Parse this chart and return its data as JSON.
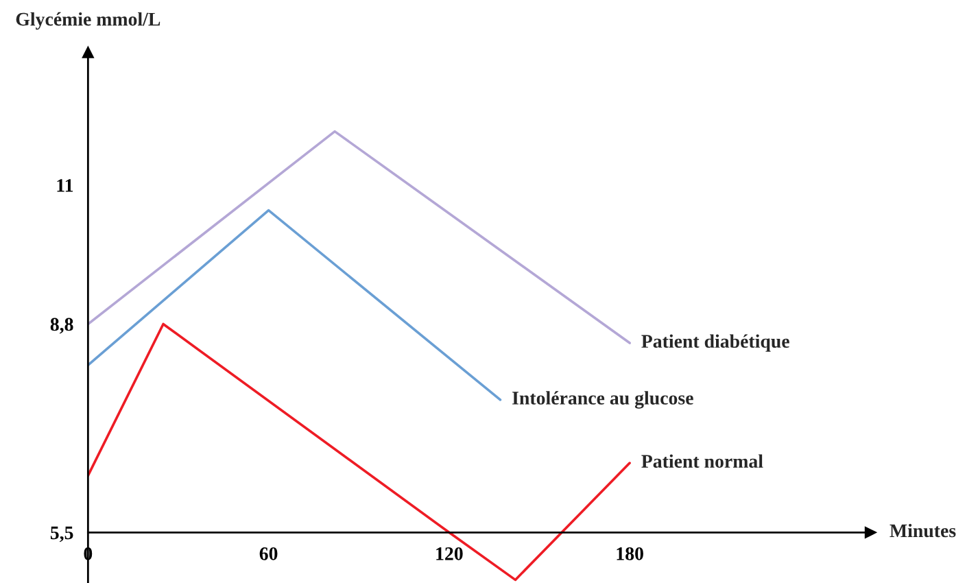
{
  "chart_data": {
    "type": "line",
    "xlabel": "Minutes",
    "ylabel": "Glycémie mmol/L",
    "series": [
      {
        "name": "Patient diabétique",
        "color": "#b4a7d6",
        "x": [
          0,
          82,
          180
        ],
        "values": [
          8.8,
          11.85,
          8.5
        ]
      },
      {
        "name": "Intolérance au glucose",
        "color": "#6a9fd4",
        "x": [
          0,
          60,
          137
        ],
        "values": [
          8.15,
          10.6,
          7.6
        ]
      },
      {
        "name": "Patient normal",
        "color": "#ee1c25",
        "x": [
          0,
          25,
          120,
          142,
          180
        ],
        "values": [
          6.4,
          8.8,
          5.5,
          4.75,
          6.6
        ]
      }
    ],
    "xlim": [
      0,
      260
    ],
    "ylim": [
      4.7,
      13.1
    ],
    "xticks": [
      0,
      60,
      120,
      180
    ],
    "yticks": [
      {
        "value": 5.5,
        "label": "5,5"
      },
      {
        "value": 8.8,
        "label": "8,8"
      },
      11
    ],
    "grid": false,
    "legend": false,
    "marker": "none",
    "line_style": "solid"
  }
}
